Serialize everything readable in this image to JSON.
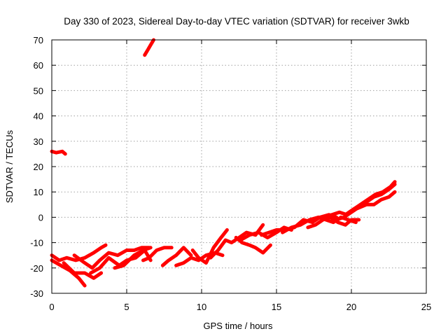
{
  "chart_data": {
    "type": "line",
    "title": "Day 330 of 2023, Sidereal Day-to-day VTEC variation (SDTVAR) for receiver 3wkb",
    "xlabel": "GPS time / hours",
    "ylabel": "SDTVAR / TECUs",
    "xlim": [
      0,
      25
    ],
    "ylim": [
      -30,
      70
    ],
    "xticks": [
      0,
      5,
      10,
      15,
      20,
      25
    ],
    "yticks": [
      -30,
      -20,
      -10,
      0,
      10,
      20,
      30,
      40,
      50,
      60,
      70
    ],
    "grid": true,
    "legend": "none",
    "color": "#ff0000",
    "series": [
      {
        "x": [
          0.0,
          0.3,
          0.7,
          0.9
        ],
        "y": [
          26,
          25.5,
          26,
          25
        ]
      },
      {
        "x": [
          6.2,
          6.4,
          6.6,
          6.8
        ],
        "y": [
          64,
          66,
          68,
          70
        ]
      },
      {
        "x": [
          0.0,
          0.5,
          1.0,
          1.6,
          2.2,
          2.8,
          3.3,
          3.6
        ],
        "y": [
          -15,
          -17,
          -16,
          -17,
          -16,
          -14,
          -12,
          -11
        ]
      },
      {
        "x": [
          0.0,
          0.6,
          1.2,
          1.8,
          2.2
        ],
        "y": [
          -17,
          -19,
          -21,
          -24,
          -27
        ]
      },
      {
        "x": [
          0.8,
          1.5,
          2.2,
          2.8,
          3.3
        ],
        "y": [
          -18,
          -22,
          -22,
          -24,
          -22
        ]
      },
      {
        "x": [
          1.5,
          2.2,
          2.7,
          3.2,
          3.8,
          4.4,
          5.0,
          5.5,
          6.0,
          6.5
        ],
        "y": [
          -15,
          -18,
          -20,
          -17,
          -14,
          -15,
          -13,
          -13,
          -12,
          -12
        ]
      },
      {
        "x": [
          2.6,
          3.2,
          3.8,
          4.5,
          5.0,
          5.6,
          6.2,
          6.6
        ],
        "y": [
          -22,
          -20,
          -16,
          -19,
          -17,
          -16,
          -13,
          -17
        ]
      },
      {
        "x": [
          4.2,
          4.8,
          5.5,
          6.1,
          6.6
        ],
        "y": [
          -20,
          -19,
          -15,
          -13,
          -12
        ]
      },
      {
        "x": [
          6.1,
          6.5,
          7.0,
          7.5,
          8.0
        ],
        "y": [
          -17,
          -16,
          -13,
          -12,
          -12
        ]
      },
      {
        "x": [
          7.4,
          7.8,
          8.3,
          8.8,
          9.3
        ],
        "y": [
          -19,
          -17,
          -15,
          -12,
          -15
        ]
      },
      {
        "x": [
          8.3,
          8.8,
          9.3,
          9.8,
          10.3,
          10.9,
          11.4
        ],
        "y": [
          -19,
          -18,
          -16,
          -17,
          -15,
          -14,
          -15
        ]
      },
      {
        "x": [
          9.4,
          9.8,
          10.3,
          10.8,
          11.3,
          11.7
        ],
        "y": [
          -13,
          -16,
          -18,
          -12,
          -8,
          -5
        ]
      },
      {
        "x": [
          10.6,
          11.1,
          11.6,
          12.0,
          12.5,
          13.0,
          13.6,
          14.1
        ],
        "y": [
          -16,
          -13,
          -9,
          -10,
          -8,
          -6,
          -7,
          -3
        ]
      },
      {
        "x": [
          12.3,
          12.7,
          13.2,
          13.6,
          14.1,
          14.6
        ],
        "y": [
          -8,
          -10,
          -11,
          -12,
          -14,
          -11
        ]
      },
      {
        "x": [
          12.6,
          13.2,
          13.8,
          14.4,
          15.0,
          15.5,
          16.0
        ],
        "y": [
          -9,
          -7,
          -6,
          -8,
          -6,
          -4,
          -5
        ]
      },
      {
        "x": [
          14.0,
          14.5,
          15.0,
          15.6,
          16.2,
          16.8,
          17.4,
          17.9,
          18.5,
          19.0
        ],
        "y": [
          -7,
          -6,
          -5,
          -5,
          -4,
          -1,
          -2,
          0,
          1,
          0
        ]
      },
      {
        "x": [
          15.4,
          16.0,
          16.6,
          17.2,
          17.8,
          18.3,
          18.8,
          19.3,
          19.8,
          20.3
        ],
        "y": [
          -6,
          -4,
          -3,
          -1,
          0,
          -1,
          -2,
          0,
          -1,
          -2
        ]
      },
      {
        "x": [
          17.1,
          17.6,
          18.1,
          18.6,
          19.1,
          19.6,
          20.0,
          20.5
        ],
        "y": [
          -4,
          -3,
          -1,
          0,
          -2,
          -3,
          -1,
          -1
        ]
      },
      {
        "x": [
          18.2,
          18.7,
          19.2,
          19.7,
          20.2,
          20.6,
          21.0,
          21.5,
          22.0,
          22.5,
          22.9
        ],
        "y": [
          0,
          1,
          2,
          1,
          3,
          4,
          5,
          5,
          7,
          8,
          10
        ]
      },
      {
        "x": [
          19.0,
          19.5,
          20.0,
          20.5,
          21.0,
          21.5,
          22.0,
          22.5,
          22.9
        ],
        "y": [
          -1,
          0,
          2,
          4,
          6,
          8,
          9,
          11,
          13
        ]
      },
      {
        "x": [
          19.6,
          20.1,
          20.6,
          21.1,
          21.6,
          22.1,
          22.6,
          22.9
        ],
        "y": [
          1,
          3,
          5,
          7,
          9,
          10,
          12,
          14
        ]
      }
    ]
  }
}
